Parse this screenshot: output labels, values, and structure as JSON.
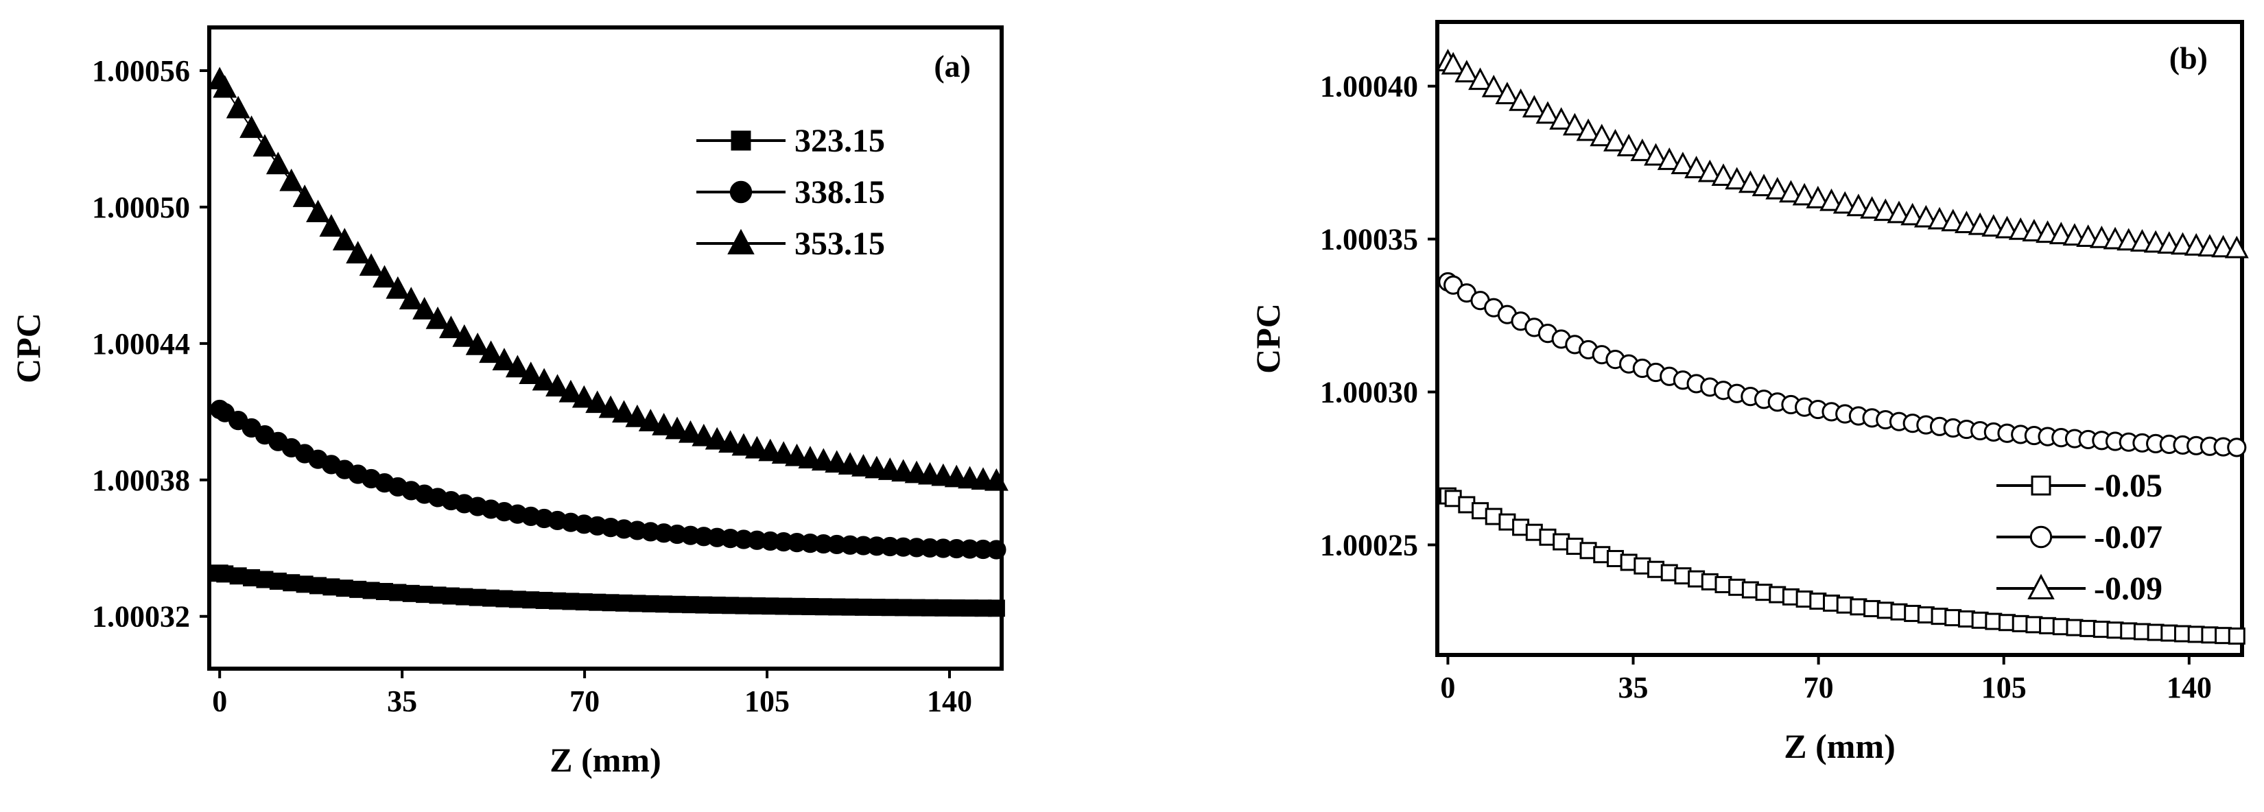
{
  "chart_data": [
    {
      "type": "scatter",
      "panel_label": "(a)",
      "xlabel": "Z (mm)",
      "ylabel": "CPC",
      "xlim": [
        -2,
        150
      ],
      "ylim": [
        1.000297,
        1.000579
      ],
      "xticks": [
        0,
        35,
        70,
        105,
        140
      ],
      "xtick_labels": [
        "0",
        "35",
        "70",
        "105",
        "140"
      ],
      "yticks": [
        1.00032,
        1.00038,
        1.00044,
        1.0005,
        1.00056
      ],
      "ytick_labels": [
        "1.00032",
        "1.00038",
        "1.00044",
        "1.00050",
        "1.00056"
      ],
      "legend_position": "top-right",
      "marker_fill": "#000000",
      "series": [
        {
          "name": "323.15",
          "marker": "square",
          "n_points": 60,
          "curve": {
            "asymptote": 1.000323,
            "amplitude": 1.6e-05,
            "tau": 45
          }
        },
        {
          "name": "338.15",
          "marker": "circle",
          "n_points": 60,
          "curve": {
            "asymptote": 1.000347,
            "amplitude": 6.4e-05,
            "tau": 45
          }
        },
        {
          "name": "353.15",
          "marker": "triangle",
          "n_points": 60,
          "curve": {
            "asymptote": 1.00037,
            "amplitude": 0.000186,
            "tau": 50
          }
        }
      ]
    },
    {
      "type": "scatter",
      "panel_label": "(b)",
      "xlabel": "Z (mm)",
      "ylabel": "CPC",
      "xlim": [
        -2,
        150
      ],
      "ylim": [
        1.000214,
        1.000421
      ],
      "xticks": [
        0,
        35,
        70,
        105,
        140
      ],
      "xtick_labels": [
        "0",
        "35",
        "70",
        "105",
        "140"
      ],
      "yticks": [
        1.00025,
        1.0003,
        1.00035,
        1.0004
      ],
      "ytick_labels": [
        "1.00025",
        "1.00030",
        "1.00035",
        "1.00040"
      ],
      "legend_position": "bottom-right",
      "marker_fill": "#ffffff",
      "series": [
        {
          "name": "-0.05",
          "marker": "square",
          "n_points": 60,
          "curve": {
            "asymptote": 1.000216,
            "amplitude": 5e-05,
            "tau": 60
          }
        },
        {
          "name": "-0.07",
          "marker": "circle",
          "n_points": 60,
          "curve": {
            "asymptote": 1.000278,
            "amplitude": 5.8e-05,
            "tau": 55
          }
        },
        {
          "name": "-0.09",
          "marker": "triangle",
          "n_points": 60,
          "curve": {
            "asymptote": 1.00034,
            "amplitude": 6.8e-05,
            "tau": 65
          }
        }
      ]
    }
  ]
}
